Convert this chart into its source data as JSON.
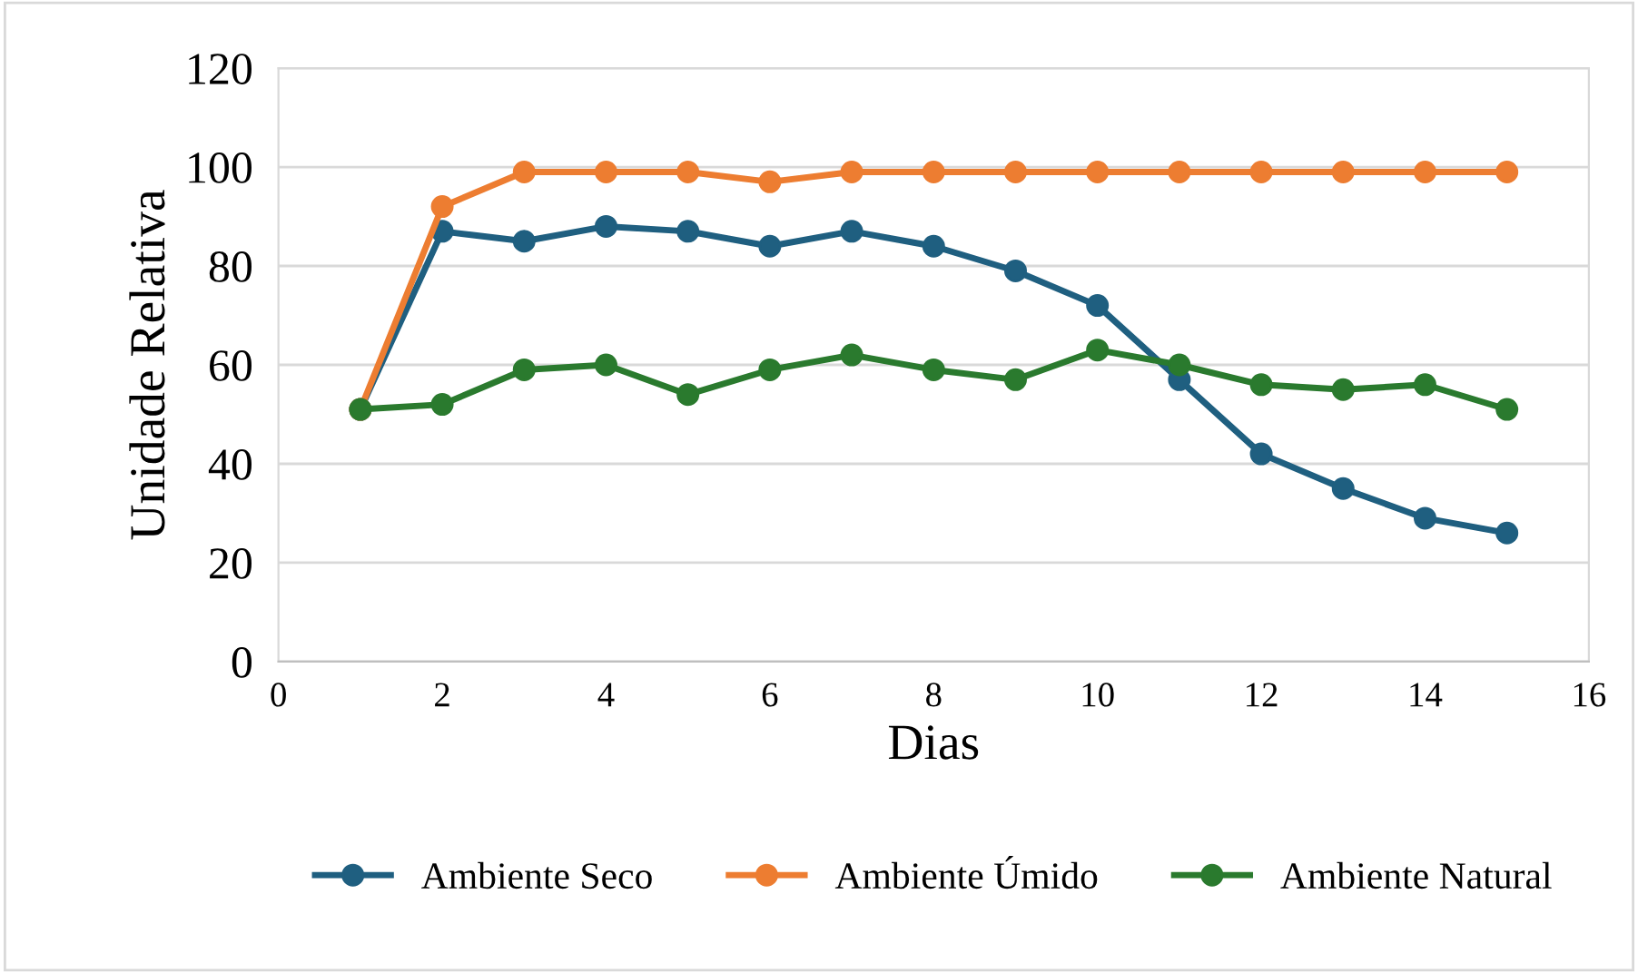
{
  "chart_data": {
    "type": "line",
    "xlabel": "Dias",
    "ylabel": "Unidade Relativa",
    "x": [
      1,
      2,
      3,
      4,
      5,
      6,
      7,
      8,
      9,
      10,
      11,
      12,
      13,
      14,
      15
    ],
    "series": [
      {
        "name": "Ambiente Seco",
        "color": "#1f5f80",
        "values": [
          51,
          87,
          85,
          88,
          87,
          84,
          87,
          84,
          79,
          72,
          57,
          42,
          35,
          29,
          26
        ]
      },
      {
        "name": "Ambiente Úmido",
        "color": "#ed7d31",
        "values": [
          51,
          92,
          99,
          99,
          99,
          97,
          99,
          99,
          99,
          99,
          99,
          99,
          99,
          99,
          99
        ]
      },
      {
        "name": "Ambiente Natural",
        "color": "#2a7a2e",
        "values": [
          51,
          52,
          59,
          60,
          54,
          59,
          62,
          59,
          57,
          63,
          60,
          56,
          55,
          56,
          51
        ]
      }
    ],
    "xlim": [
      0,
      16
    ],
    "xticks": [
      0,
      2,
      4,
      6,
      8,
      10,
      12,
      14,
      16
    ],
    "ylim": [
      0,
      120
    ],
    "yticks": [
      0,
      20,
      40,
      60,
      80,
      100,
      120
    ],
    "grid": "y",
    "legend": "bottom",
    "marker": "circle",
    "line_style": "solid"
  }
}
